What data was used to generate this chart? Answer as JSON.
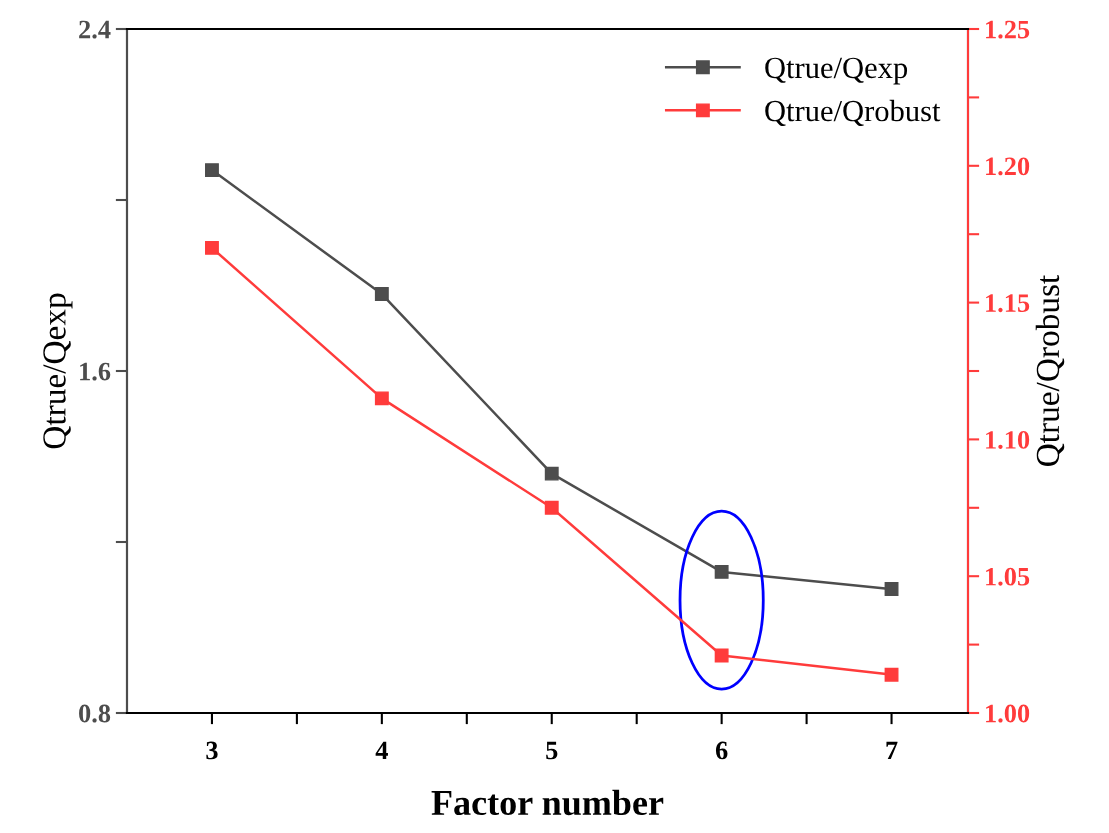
{
  "chart_data": {
    "type": "line",
    "xlabel": "Factor number",
    "ylabel": "Qtrue/Qexp",
    "y2label": "Qtrue/Qrobust",
    "x": [
      3,
      4,
      5,
      6,
      7
    ],
    "xlim": [
      2.5,
      7.45
    ],
    "xticks": [
      3,
      {
        "value": 3.5,
        "label": null
      },
      4,
      {
        "value": 4.5,
        "label": null
      },
      5,
      {
        "value": 5.5,
        "label": null
      },
      6,
      {
        "value": 6.5,
        "label": null
      },
      7
    ],
    "ylim": [
      0.8,
      2.4
    ],
    "yticks": [
      0.8,
      {
        "value": 1.2,
        "label": null
      },
      1.6,
      {
        "value": 2.0,
        "label": null
      },
      2.4
    ],
    "y2lim": [
      1.0,
      1.25
    ],
    "y2ticks": [
      {
        "value": 1.0,
        "label": "1.00"
      },
      {
        "value": 1.025,
        "label": null
      },
      {
        "value": 1.05,
        "label": "1.05"
      },
      {
        "value": 1.075,
        "label": null
      },
      {
        "value": 1.1,
        "label": "1.10"
      },
      {
        "value": 1.125,
        "label": null
      },
      {
        "value": 1.15,
        "label": "1.15"
      },
      {
        "value": 1.175,
        "label": null
      },
      {
        "value": 1.2,
        "label": "1.20"
      },
      {
        "value": 1.225,
        "label": null
      },
      {
        "value": 1.25,
        "label": "1.25"
      }
    ],
    "series": [
      {
        "name": "Qtrue/Qexp",
        "color": "#4d4d4d",
        "values": [
          2.07,
          1.78,
          1.36,
          1.13,
          1.09
        ]
      },
      {
        "name": "Qtrue/Qrobust",
        "color": "#ff3b3b",
        "axis": "y2",
        "values": [
          1.17,
          1.115,
          1.075,
          1.021,
          1.014
        ]
      }
    ],
    "marker": "square",
    "line_style": "solid",
    "legend": "top right",
    "grid": false
  }
}
